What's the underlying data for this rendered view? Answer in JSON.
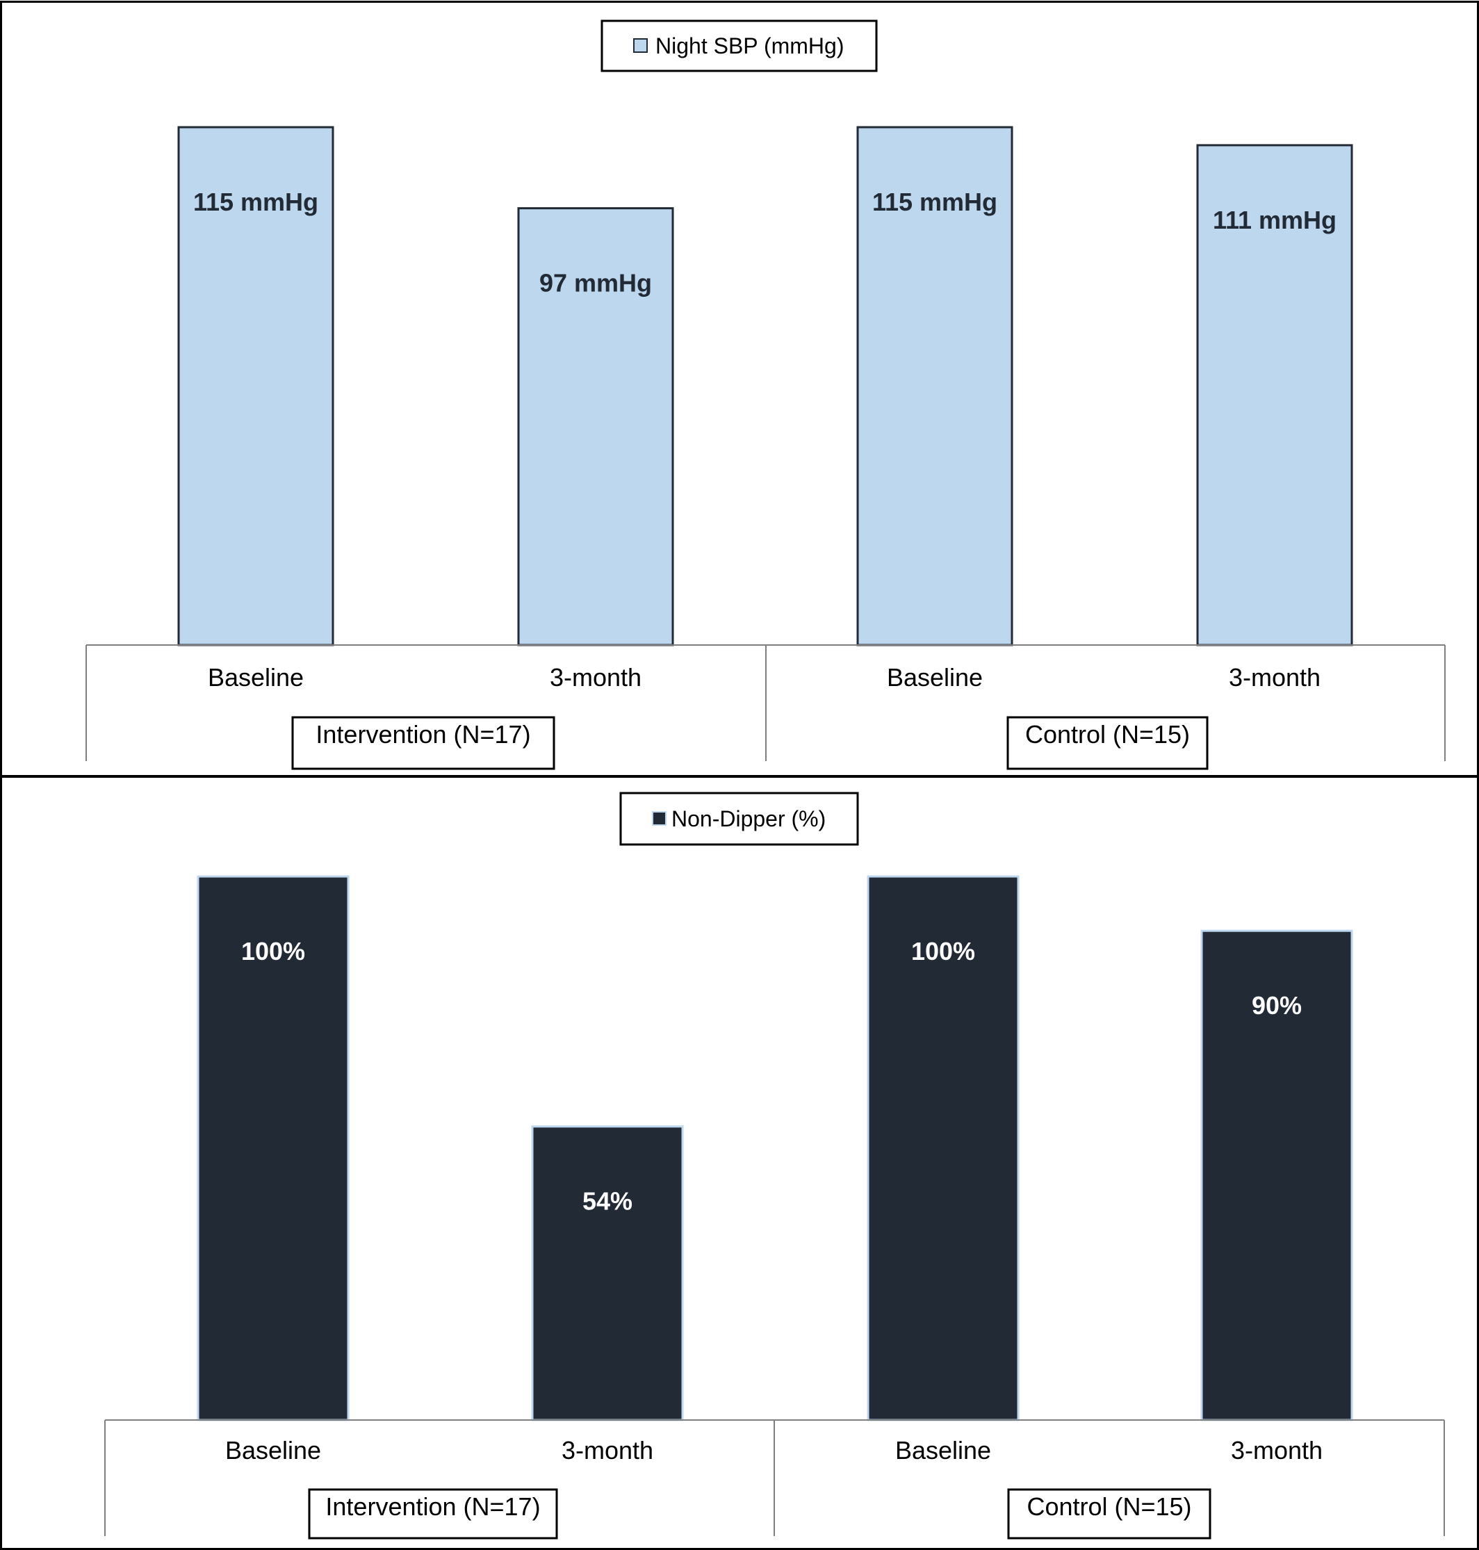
{
  "chart_data": [
    {
      "type": "bar",
      "legend": {
        "label": "Night SBP (mmHg)",
        "position": "top-center"
      },
      "categories": [
        "Baseline",
        "3-month",
        "Baseline",
        "3-month"
      ],
      "groups": [
        {
          "label": "Intervention (N=17)",
          "categories": [
            "Baseline",
            "3-month"
          ]
        },
        {
          "label": "Control (N=15)",
          "categories": [
            "Baseline",
            "3-month"
          ]
        }
      ],
      "values": [
        115,
        97,
        115,
        111
      ],
      "data_labels": [
        "115 mmHg",
        "97 mmHg",
        "115 mmHg",
        "111 mmHg"
      ],
      "ylim": [
        0,
        115
      ],
      "grid": false,
      "colors": {
        "bar_fill": "#bdd7ee",
        "bar_stroke": "#222a35",
        "label_text": "#222a35"
      }
    },
    {
      "type": "bar",
      "legend": {
        "label": "Non-Dipper (%)",
        "position": "top-center"
      },
      "categories": [
        "Baseline",
        "3-month",
        "Baseline",
        "3-month"
      ],
      "groups": [
        {
          "label": "Intervention (N=17)",
          "categories": [
            "Baseline",
            "3-month"
          ]
        },
        {
          "label": "Control (N=15)",
          "categories": [
            "Baseline",
            "3-month"
          ]
        }
      ],
      "values": [
        100,
        54,
        100,
        90
      ],
      "data_labels": [
        "100%",
        "54%",
        "100%",
        "90%"
      ],
      "ylim": [
        0,
        100
      ],
      "grid": false,
      "colors": {
        "bar_fill": "#222a35",
        "bar_stroke": "#bdd7ee",
        "label_text": "#ffffff"
      }
    }
  ]
}
